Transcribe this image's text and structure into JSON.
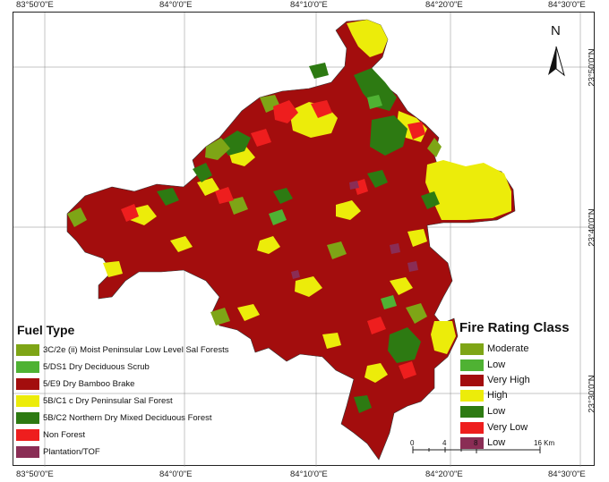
{
  "map": {
    "north_label": "N",
    "lon_ticks": [
      "83°50'0\"E",
      "84°0'0\"E",
      "84°10'0\"E",
      "84°20'0\"E",
      "84°30'0\"E"
    ],
    "lat_ticks": [
      "23°50'0\"N",
      "23°40'0\"N",
      "23°30'0\"N"
    ]
  },
  "fuel_type": {
    "title": "Fuel Type",
    "items": [
      {
        "label": "3C/2e (ii) Moist Peninsular Low Level Sal Forests",
        "color": "#7ea516"
      },
      {
        "label": "5/DS1 Dry Deciduous Scrub",
        "color": "#4fb233"
      },
      {
        "label": "5/E9 Dry Bamboo Brake",
        "color": "#a30d0d"
      },
      {
        "label": "5B/C1 c Dry Peninsular Sal Forest",
        "color": "#ecec0a"
      },
      {
        "label": "5B/C2 Northern Dry Mixed Deciduous Forest",
        "color": "#2d7a12"
      },
      {
        "label": "Non Forest",
        "color": "#ee1e1e"
      },
      {
        "label": "Plantation/TOF",
        "color": "#8a2d55"
      }
    ]
  },
  "fire_rating": {
    "title": "Fire Rating Class",
    "items": [
      {
        "label": "Moderate",
        "color": "#7ea516"
      },
      {
        "label": "Low",
        "color": "#4fb233"
      },
      {
        "label": "Very High",
        "color": "#a30d0d"
      },
      {
        "label": "High",
        "color": "#ecec0a"
      },
      {
        "label": "Low",
        "color": "#2d7a12"
      },
      {
        "label": "Very Low",
        "color": "#ee1e1e"
      },
      {
        "label": "Low",
        "color": "#8a2d55"
      }
    ]
  },
  "scale_bar": {
    "labels": [
      "0",
      "4",
      "8",
      "16 Km"
    ]
  }
}
